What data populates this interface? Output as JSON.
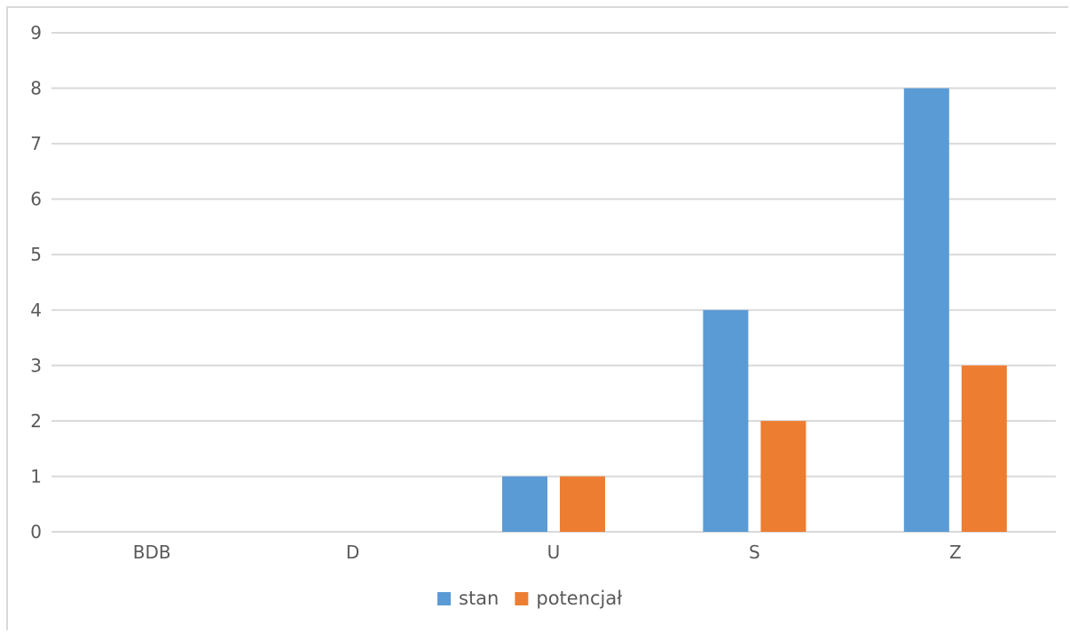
{
  "chart_data": {
    "type": "bar",
    "categories": [
      "BDB",
      "D",
      "U",
      "S",
      "Z"
    ],
    "series": [
      {
        "name": "stan",
        "values": [
          0,
          0,
          1,
          4,
          8
        ],
        "color": "#5b9bd5"
      },
      {
        "name": "potencjał",
        "values": [
          0,
          0,
          1,
          2,
          3
        ],
        "color": "#ed7d31"
      }
    ],
    "ylim": [
      0,
      9
    ],
    "yticks": [
      0,
      1,
      2,
      3,
      4,
      5,
      6,
      7,
      8,
      9
    ],
    "grid": true,
    "legend_position": "bottom"
  },
  "colors": {
    "gridline": "#d9d9d9",
    "text": "#595959"
  }
}
